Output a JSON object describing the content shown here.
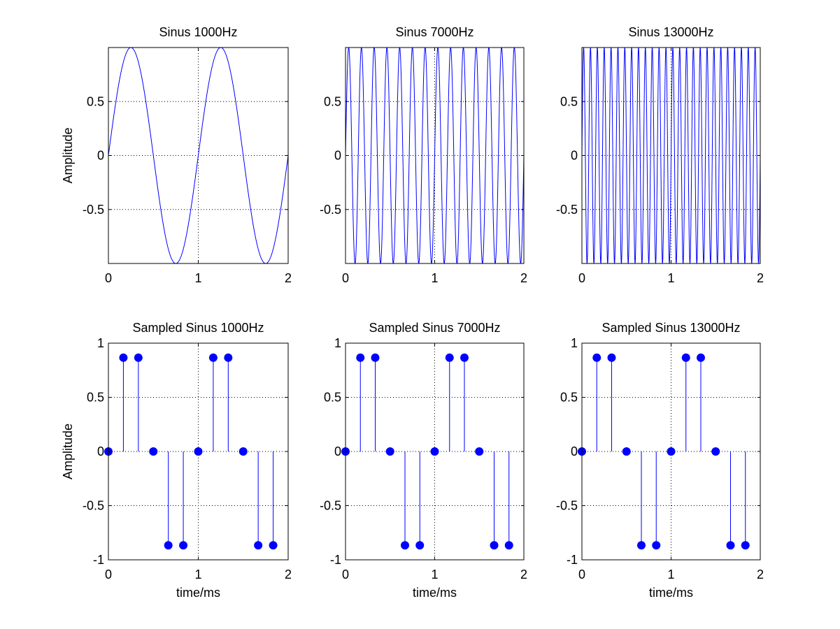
{
  "figure": {
    "background": "#ffffff"
  },
  "style": {
    "series_color": "#0000ff",
    "axis_color": "#000000",
    "grid_color": "#000000"
  },
  "chart_data": [
    {
      "type": "line",
      "title": "Sinus 1000Hz",
      "xlabel": "",
      "ylabel": "Amplitude",
      "frequency_hz": 1000,
      "function": "sin(2*pi*f*t), t in ms",
      "xlim": [
        0,
        2
      ],
      "ylim": [
        -1,
        1
      ],
      "xticks": [
        0,
        1,
        2
      ],
      "xtick_labels": [
        "0",
        "1",
        "2"
      ],
      "yticks": [
        -0.5,
        0,
        0.5
      ],
      "ytick_labels": [
        "-0.5",
        "0",
        "0.5"
      ],
      "grid": true
    },
    {
      "type": "line",
      "title": "Sinus 7000Hz",
      "xlabel": "",
      "ylabel": "",
      "frequency_hz": 7000,
      "function": "sin(2*pi*f*t), t in ms",
      "xlim": [
        0,
        2
      ],
      "ylim": [
        -1,
        1
      ],
      "xticks": [
        0,
        1,
        2
      ],
      "xtick_labels": [
        "0",
        "1",
        "2"
      ],
      "yticks": [
        -0.5,
        0,
        0.5
      ],
      "ytick_labels": [
        "-0.5",
        "0",
        "0.5"
      ],
      "grid": true
    },
    {
      "type": "line",
      "title": "Sinus 13000Hz",
      "xlabel": "",
      "ylabel": "",
      "frequency_hz": 13000,
      "function": "sin(2*pi*f*t), t in ms",
      "xlim": [
        0,
        2
      ],
      "ylim": [
        -1,
        1
      ],
      "xticks": [
        0,
        1,
        2
      ],
      "xtick_labels": [
        "0",
        "1",
        "2"
      ],
      "yticks": [
        -0.5,
        0,
        0.5
      ],
      "ytick_labels": [
        "-0.5",
        "0",
        "0.5"
      ],
      "grid": true
    },
    {
      "type": "stem",
      "title": "Sampled Sinus 1000Hz",
      "xlabel": "time/ms",
      "ylabel": "Amplitude",
      "x": [
        0,
        0.1667,
        0.3333,
        0.5,
        0.6667,
        0.8333,
        1.0,
        1.1667,
        1.3333,
        1.5,
        1.6667,
        1.8333
      ],
      "values": [
        0,
        0.866,
        0.866,
        0,
        -0.866,
        -0.866,
        0,
        0.866,
        0.866,
        0,
        -0.866,
        -0.866
      ],
      "xlim": [
        0,
        2
      ],
      "ylim": [
        -1,
        1
      ],
      "xticks": [
        0,
        1,
        2
      ],
      "xtick_labels": [
        "0",
        "1",
        "2"
      ],
      "yticks": [
        -1,
        -0.5,
        0,
        0.5,
        1
      ],
      "ytick_labels": [
        "-1",
        "-0.5",
        "0",
        "0.5",
        "1"
      ],
      "grid": true
    },
    {
      "type": "stem",
      "title": "Sampled Sinus 7000Hz",
      "xlabel": "time/ms",
      "ylabel": "",
      "x": [
        0,
        0.1667,
        0.3333,
        0.5,
        0.6667,
        0.8333,
        1.0,
        1.1667,
        1.3333,
        1.5,
        1.6667,
        1.8333
      ],
      "values": [
        0,
        0.866,
        0.866,
        0,
        -0.866,
        -0.866,
        0,
        0.866,
        0.866,
        0,
        -0.866,
        -0.866
      ],
      "xlim": [
        0,
        2
      ],
      "ylim": [
        -1,
        1
      ],
      "xticks": [
        0,
        1,
        2
      ],
      "xtick_labels": [
        "0",
        "1",
        "2"
      ],
      "yticks": [
        -1,
        -0.5,
        0,
        0.5,
        1
      ],
      "ytick_labels": [
        "-1",
        "-0.5",
        "0",
        "0.5",
        "1"
      ],
      "grid": true
    },
    {
      "type": "stem",
      "title": "Sampled Sinus 13000Hz",
      "xlabel": "time/ms",
      "ylabel": "",
      "x": [
        0,
        0.1667,
        0.3333,
        0.5,
        0.6667,
        0.8333,
        1.0,
        1.1667,
        1.3333,
        1.5,
        1.6667,
        1.8333
      ],
      "values": [
        0,
        0.866,
        0.866,
        0,
        -0.866,
        -0.866,
        0,
        0.866,
        0.866,
        0,
        -0.866,
        -0.866
      ],
      "xlim": [
        0,
        2
      ],
      "ylim": [
        -1,
        1
      ],
      "xticks": [
        0,
        1,
        2
      ],
      "xtick_labels": [
        "0",
        "1",
        "2"
      ],
      "yticks": [
        -1,
        -0.5,
        0,
        0.5,
        1
      ],
      "ytick_labels": [
        "-1",
        "-0.5",
        "0",
        "0.5",
        "1"
      ],
      "grid": true
    }
  ]
}
